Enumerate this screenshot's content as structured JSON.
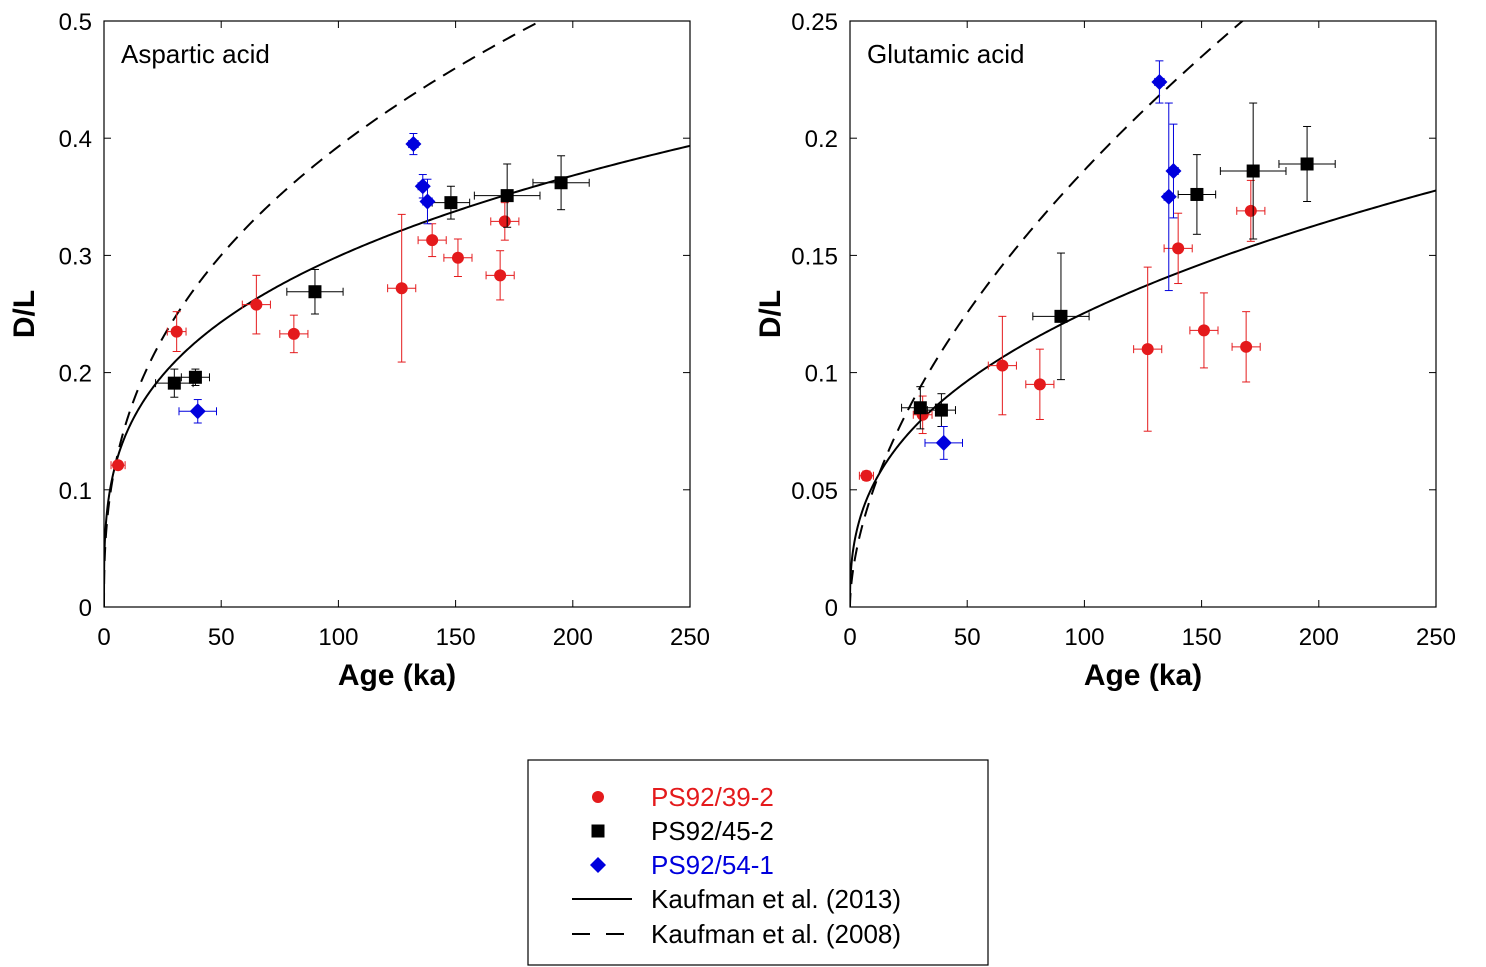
{
  "colors": {
    "PS92_39_2": "#e41a1c",
    "PS92_45_2": "#000000",
    "PS92_54_1": "#0000dd",
    "axis": "#000000"
  },
  "legend": {
    "items": [
      {
        "label": "PS92/39-2",
        "color": "#e41a1c",
        "marker": "circle"
      },
      {
        "label": "PS92/45-2",
        "color": "#000000",
        "marker": "square"
      },
      {
        "label": "PS92/54-1",
        "color": "#0000dd",
        "marker": "diamond"
      },
      {
        "label": "Kaufman et al. (2013)",
        "color": "#000000",
        "marker": "solid-line"
      },
      {
        "label": "Kaufman et al. (2008)",
        "color": "#000000",
        "marker": "dashed-line"
      }
    ],
    "placement": "bottom-center"
  },
  "chart_data": [
    {
      "type": "scatter",
      "title": "Aspartic acid",
      "xlabel": "Age (ka)",
      "ylabel": "D/L",
      "xlim": [
        0,
        250
      ],
      "ylim": [
        0,
        0.5
      ],
      "xticks": [
        0,
        50,
        100,
        150,
        200,
        250
      ],
      "yticks": [
        0,
        0.1,
        0.2,
        0.3,
        0.4,
        0.5
      ],
      "yticklabels": [
        "0",
        "0.1",
        "0.2",
        "0.3",
        "0.4",
        "0.5"
      ],
      "grid": false,
      "series": [
        {
          "name": "PS92/39-2",
          "marker": "circle",
          "color": "#e41a1c",
          "points": [
            {
              "x": 6,
              "y": 0.121,
              "xerr": 3,
              "yerr": 0.003
            },
            {
              "x": 31,
              "y": 0.235,
              "xerr": 4,
              "yerr": 0.017
            },
            {
              "x": 65,
              "y": 0.258,
              "xerr": 6,
              "yerr": 0.025
            },
            {
              "x": 81,
              "y": 0.233,
              "xerr": 6,
              "yerr": 0.016
            },
            {
              "x": 127,
              "y": 0.272,
              "xerr": 6,
              "yerr": 0.063
            },
            {
              "x": 140,
              "y": 0.313,
              "xerr": 6,
              "yerr": 0.014
            },
            {
              "x": 151,
              "y": 0.298,
              "xerr": 6,
              "yerr": 0.016
            },
            {
              "x": 169,
              "y": 0.283,
              "xerr": 6,
              "yerr": 0.021
            },
            {
              "x": 171,
              "y": 0.329,
              "xerr": 6,
              "yerr": 0.016
            }
          ]
        },
        {
          "name": "PS92/45-2",
          "marker": "square",
          "color": "#000000",
          "points": [
            {
              "x": 30,
              "y": 0.191,
              "xerr": 8,
              "yerr": 0.012
            },
            {
              "x": 39,
              "y": 0.196,
              "xerr": 6,
              "yerr": 0.007
            },
            {
              "x": 90,
              "y": 0.269,
              "xerr": 12,
              "yerr": 0.019
            },
            {
              "x": 148,
              "y": 0.345,
              "xerr": 8,
              "yerr": 0.014
            },
            {
              "x": 172,
              "y": 0.351,
              "xerr": 14,
              "yerr": 0.027
            },
            {
              "x": 195,
              "y": 0.362,
              "xerr": 12,
              "yerr": 0.023
            }
          ]
        },
        {
          "name": "PS92/54-1",
          "marker": "diamond",
          "color": "#0000dd",
          "points": [
            {
              "x": 40,
              "y": 0.167,
              "xerr": 8,
              "yerr": 0.01
            },
            {
              "x": 132,
              "y": 0.395,
              "xerr": 2,
              "yerr": 0.009
            },
            {
              "x": 136,
              "y": 0.359,
              "xerr": 2,
              "yerr": 0.01
            },
            {
              "x": 138,
              "y": 0.346,
              "xerr": 2,
              "yerr": 0.019
            }
          ]
        }
      ],
      "curves": [
        {
          "name": "Kaufman et al. (2013)",
          "style": "solid",
          "model": "power",
          "a": 0.0755,
          "b": 0.299,
          "xmax": 250
        },
        {
          "name": "Kaufman et al. (2008)",
          "style": "dashed",
          "model": "power",
          "a": 0.0658,
          "b": 0.388,
          "xmax": 250
        }
      ]
    },
    {
      "type": "scatter",
      "title": "Glutamic acid",
      "xlabel": "Age (ka)",
      "ylabel": "D/L",
      "xlim": [
        0,
        250
      ],
      "ylim": [
        0,
        0.25
      ],
      "xticks": [
        0,
        50,
        100,
        150,
        200,
        250
      ],
      "yticks": [
        0,
        0.05,
        0.1,
        0.15,
        0.2,
        0.25
      ],
      "yticklabels": [
        "0",
        "0.05",
        "0.1",
        "0.15",
        "0.2",
        "0.25"
      ],
      "grid": false,
      "series": [
        {
          "name": "PS92/39-2",
          "marker": "circle",
          "color": "#e41a1c",
          "points": [
            {
              "x": 7,
              "y": 0.056,
              "xerr": 3,
              "yerr": 0.002
            },
            {
              "x": 31,
              "y": 0.082,
              "xerr": 4,
              "yerr": 0.008
            },
            {
              "x": 65,
              "y": 0.103,
              "xerr": 6,
              "yerr": 0.021
            },
            {
              "x": 81,
              "y": 0.095,
              "xerr": 6,
              "yerr": 0.015
            },
            {
              "x": 127,
              "y": 0.11,
              "xerr": 6,
              "yerr": 0.035
            },
            {
              "x": 140,
              "y": 0.153,
              "xerr": 6,
              "yerr": 0.015
            },
            {
              "x": 151,
              "y": 0.118,
              "xerr": 6,
              "yerr": 0.016
            },
            {
              "x": 169,
              "y": 0.111,
              "xerr": 6,
              "yerr": 0.015
            },
            {
              "x": 171,
              "y": 0.169,
              "xerr": 6,
              "yerr": 0.013
            }
          ]
        },
        {
          "name": "PS92/45-2",
          "marker": "square",
          "color": "#000000",
          "points": [
            {
              "x": 30,
              "y": 0.085,
              "xerr": 8,
              "yerr": 0.009
            },
            {
              "x": 39,
              "y": 0.084,
              "xerr": 6,
              "yerr": 0.007
            },
            {
              "x": 90,
              "y": 0.124,
              "xerr": 12,
              "yerr": 0.027
            },
            {
              "x": 148,
              "y": 0.176,
              "xerr": 8,
              "yerr": 0.017
            },
            {
              "x": 172,
              "y": 0.186,
              "xerr": 14,
              "yerr": 0.029
            },
            {
              "x": 195,
              "y": 0.189,
              "xerr": 12,
              "yerr": 0.016
            }
          ]
        },
        {
          "name": "PS92/54-1",
          "marker": "diamond",
          "color": "#0000dd",
          "points": [
            {
              "x": 40,
              "y": 0.07,
              "xerr": 8,
              "yerr": 0.007
            },
            {
              "x": 132,
              "y": 0.224,
              "xerr": 2,
              "yerr": 0.009
            },
            {
              "x": 136,
              "y": 0.175,
              "xerr": 2,
              "yerr": 0.04
            },
            {
              "x": 138,
              "y": 0.186,
              "xerr": 2,
              "yerr": 0.02
            }
          ]
        }
      ],
      "curves": [
        {
          "name": "Kaufman et al. (2013)",
          "style": "solid",
          "model": "power",
          "a": 0.0218,
          "b": 0.38,
          "xmax": 250
        },
        {
          "name": "Kaufman et al. (2008)",
          "style": "dashed",
          "model": "power",
          "a": 0.0135,
          "b": 0.57,
          "xmax": 250
        }
      ]
    }
  ]
}
